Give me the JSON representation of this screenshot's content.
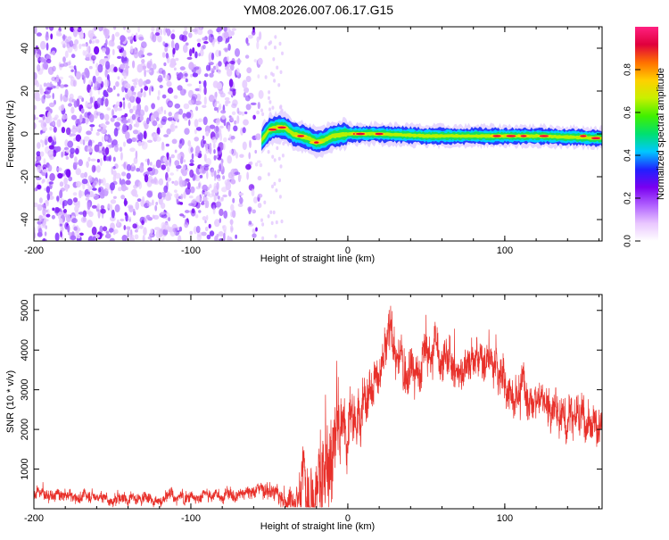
{
  "title": "YM08.2026.007.06.17.G15",
  "colors": {
    "snr_line": "#e8302a",
    "frame": "#000000",
    "colormap": [
      "#ffffff",
      "#e9c6ff",
      "#b060ff",
      "#7a00f0",
      "#2020ff",
      "#00c8ff",
      "#00e070",
      "#40f000",
      "#c8f000",
      "#ffd000",
      "#ff7000",
      "#e0003c",
      "#ff2080"
    ]
  },
  "chart_data": [
    {
      "type": "heatmap",
      "name": "spectrogram",
      "xlabel": "Height of straight line (km)",
      "ylabel": "Frequency (Hz)",
      "xlim": [
        -200,
        162
      ],
      "ylim": [
        -50,
        50
      ],
      "xticks": [
        -200,
        -100,
        0,
        100
      ],
      "xtick_labels": [
        "-200",
        "-100",
        "0",
        "100"
      ],
      "yticks": [
        -40,
        -20,
        0,
        20,
        40
      ],
      "ytick_labels": [
        "-40",
        "-20",
        "0",
        "20",
        "40"
      ],
      "noise_region_x": [
        -200,
        -55
      ],
      "signal_track": [
        {
          "x": -55,
          "f": -3
        },
        {
          "x": -50,
          "f": 2
        },
        {
          "x": -45,
          "f": 3
        },
        {
          "x": -40,
          "f": 3
        },
        {
          "x": -35,
          "f": 0
        },
        {
          "x": -30,
          "f": -1
        },
        {
          "x": -25,
          "f": -2
        },
        {
          "x": -20,
          "f": -4
        },
        {
          "x": -15,
          "f": -3
        },
        {
          "x": -10,
          "f": -1
        },
        {
          "x": 0,
          "f": 0
        },
        {
          "x": 20,
          "f": 0
        },
        {
          "x": 50,
          "f": -1
        },
        {
          "x": 80,
          "f": -1
        },
        {
          "x": 120,
          "f": -1
        },
        {
          "x": 162,
          "f": -2
        }
      ],
      "colorbar": {
        "label": "Normalized spectral amplitude",
        "range": [
          0,
          1
        ],
        "ticks": [
          0.0,
          0.2,
          0.4,
          0.6,
          0.8
        ],
        "tick_labels": [
          "0.0",
          "0.2",
          "0.4",
          "0.6",
          "0.8"
        ]
      }
    },
    {
      "type": "line",
      "name": "snr",
      "xlabel": "Height of straight line (km)",
      "ylabel": "SNR (10 * v/v)",
      "xlim": [
        -200,
        162
      ],
      "ylim": [
        0,
        5400
      ],
      "xticks": [
        -200,
        -100,
        0,
        100
      ],
      "xtick_labels": [
        "-200",
        "-100",
        "0",
        "100"
      ],
      "yticks": [
        1000,
        2000,
        3000,
        4000,
        5000
      ],
      "ytick_labels": [
        "1000",
        "2000",
        "3000",
        "4000",
        "5000"
      ],
      "envelope": [
        {
          "x": -200,
          "mean": 380,
          "spread": 110
        },
        {
          "x": -150,
          "mean": 360,
          "spread": 120
        },
        {
          "x": -100,
          "mean": 380,
          "spread": 120
        },
        {
          "x": -60,
          "mean": 400,
          "spread": 130
        },
        {
          "x": -40,
          "mean": 350,
          "spread": 200
        },
        {
          "x": -30,
          "mean": 600,
          "spread": 450
        },
        {
          "x": -20,
          "mean": 1300,
          "spread": 1200
        },
        {
          "x": -10,
          "mean": 2200,
          "spread": 900
        },
        {
          "x": 0,
          "mean": 2700,
          "spread": 600
        },
        {
          "x": 10,
          "mean": 3000,
          "spread": 550
        },
        {
          "x": 20,
          "mean": 3700,
          "spread": 450
        },
        {
          "x": 30,
          "mean": 4300,
          "spread": 500
        },
        {
          "x": 40,
          "mean": 3600,
          "spread": 450
        },
        {
          "x": 50,
          "mean": 4100,
          "spread": 450
        },
        {
          "x": 60,
          "mean": 4000,
          "spread": 400
        },
        {
          "x": 70,
          "mean": 3600,
          "spread": 400
        },
        {
          "x": 80,
          "mean": 3500,
          "spread": 400
        },
        {
          "x": 100,
          "mean": 3200,
          "spread": 400
        },
        {
          "x": 120,
          "mean": 2900,
          "spread": 400
        },
        {
          "x": 140,
          "mean": 2600,
          "spread": 400
        },
        {
          "x": 162,
          "mean": 2300,
          "spread": 400
        }
      ]
    }
  ]
}
